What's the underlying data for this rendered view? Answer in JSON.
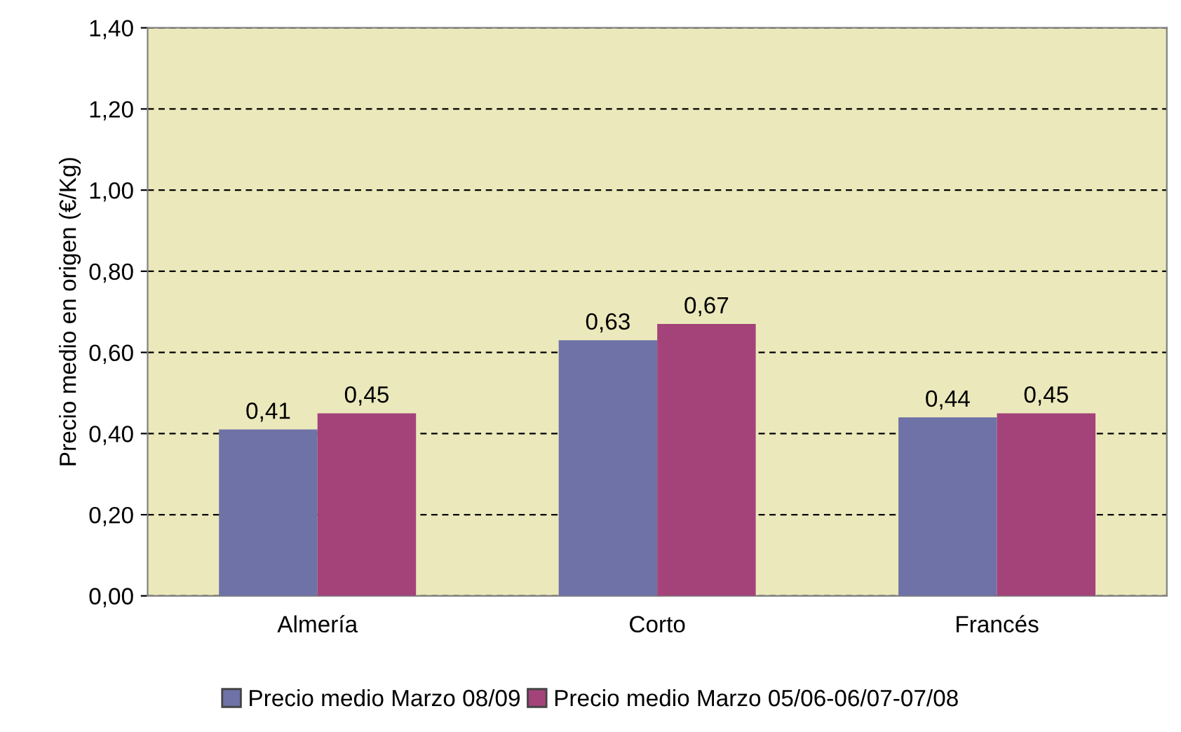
{
  "chart_data": {
    "type": "bar",
    "ylabel": "Precio medio en origen (€/Kg)",
    "categories": [
      "Almería",
      "Corto",
      "Francés"
    ],
    "series": [
      {
        "name": "Precio medio Marzo 08/09",
        "color": "#6e72a6",
        "values": [
          0.41,
          0.63,
          0.44
        ],
        "value_labels": [
          "0,41",
          "0,63",
          "0,44"
        ]
      },
      {
        "name": "Precio medio Marzo 05/06-06/07-07/08",
        "color": "#a4437a",
        "values": [
          0.45,
          0.67,
          0.45
        ],
        "value_labels": [
          "0,45",
          "0,67",
          "0,45"
        ]
      }
    ],
    "ylim": [
      0,
      1.4
    ],
    "yticks": [
      {
        "value": 0,
        "label": "0,00"
      },
      {
        "value": 0.2,
        "label": "0,20"
      },
      {
        "value": 0.4,
        "label": "0,40"
      },
      {
        "value": 0.6,
        "label": "0,60"
      },
      {
        "value": 0.8,
        "label": "0,80"
      },
      {
        "value": 1.0,
        "label": "1,00"
      },
      {
        "value": 1.2,
        "label": "1,20"
      },
      {
        "value": 1.4,
        "label": "1,40"
      }
    ],
    "grid": "y",
    "legend": "bottom"
  }
}
